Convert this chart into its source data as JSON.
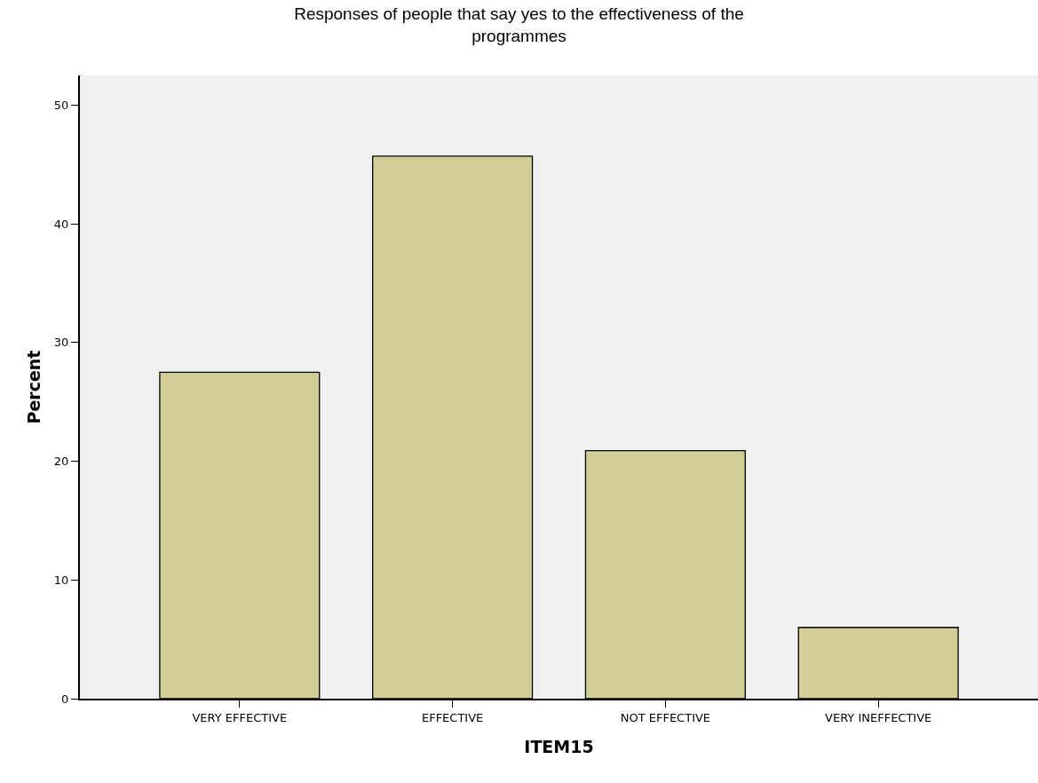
{
  "chart_data": {
    "type": "bar",
    "title": "Responses of people that say yes to the effectiveness of the programmes",
    "xlabel": "ITEM15",
    "ylabel": "Percent",
    "categories": [
      "VERY EFFECTIVE",
      "EFFECTIVE",
      "NOT EFFECTIVE",
      "VERY INEFFECTIVE"
    ],
    "values": [
      27.5,
      45.7,
      20.9,
      6.0
    ],
    "color": "#d3cd97",
    "ylim": [
      0,
      52.5
    ],
    "yticks": [
      0,
      10,
      20,
      30,
      40,
      50
    ],
    "grid": false,
    "legend": false
  }
}
